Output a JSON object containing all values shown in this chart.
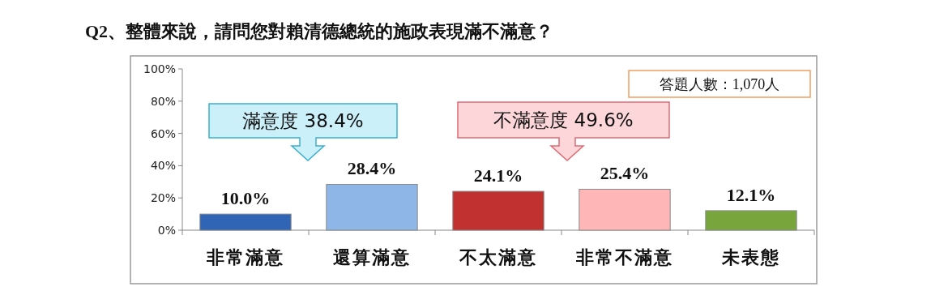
{
  "chart_data": {
    "type": "bar",
    "title": "Q2、整體來說，請問您對賴清德總統的施政表現滿不滿意？",
    "categories": [
      "非常滿意",
      "還算滿意",
      "不太滿意",
      "非常不滿意",
      "未表態"
    ],
    "values": [
      10.0,
      28.4,
      24.1,
      25.4,
      12.1
    ],
    "colors": [
      "#2f65b4",
      "#8eb6e6",
      "#c0312f",
      "#ffb6b6",
      "#79a53d"
    ],
    "value_labels": [
      "10.0%",
      "28.4%",
      "24.1%",
      "25.4%",
      "12.1%"
    ],
    "ylim": [
      0,
      100
    ],
    "yticks": [
      {
        "value": 0,
        "label": "0%"
      },
      {
        "value": 20,
        "label": "20%"
      },
      {
        "value": 40,
        "label": "40%"
      },
      {
        "value": 60,
        "label": "60%"
      },
      {
        "value": 80,
        "label": "80%"
      },
      {
        "value": 100,
        "label": "100%"
      }
    ],
    "grid": false,
    "annotations": [
      "滿意度 38.4%",
      "不滿意度 49.6%",
      "答題人數：1,070人"
    ]
  }
}
